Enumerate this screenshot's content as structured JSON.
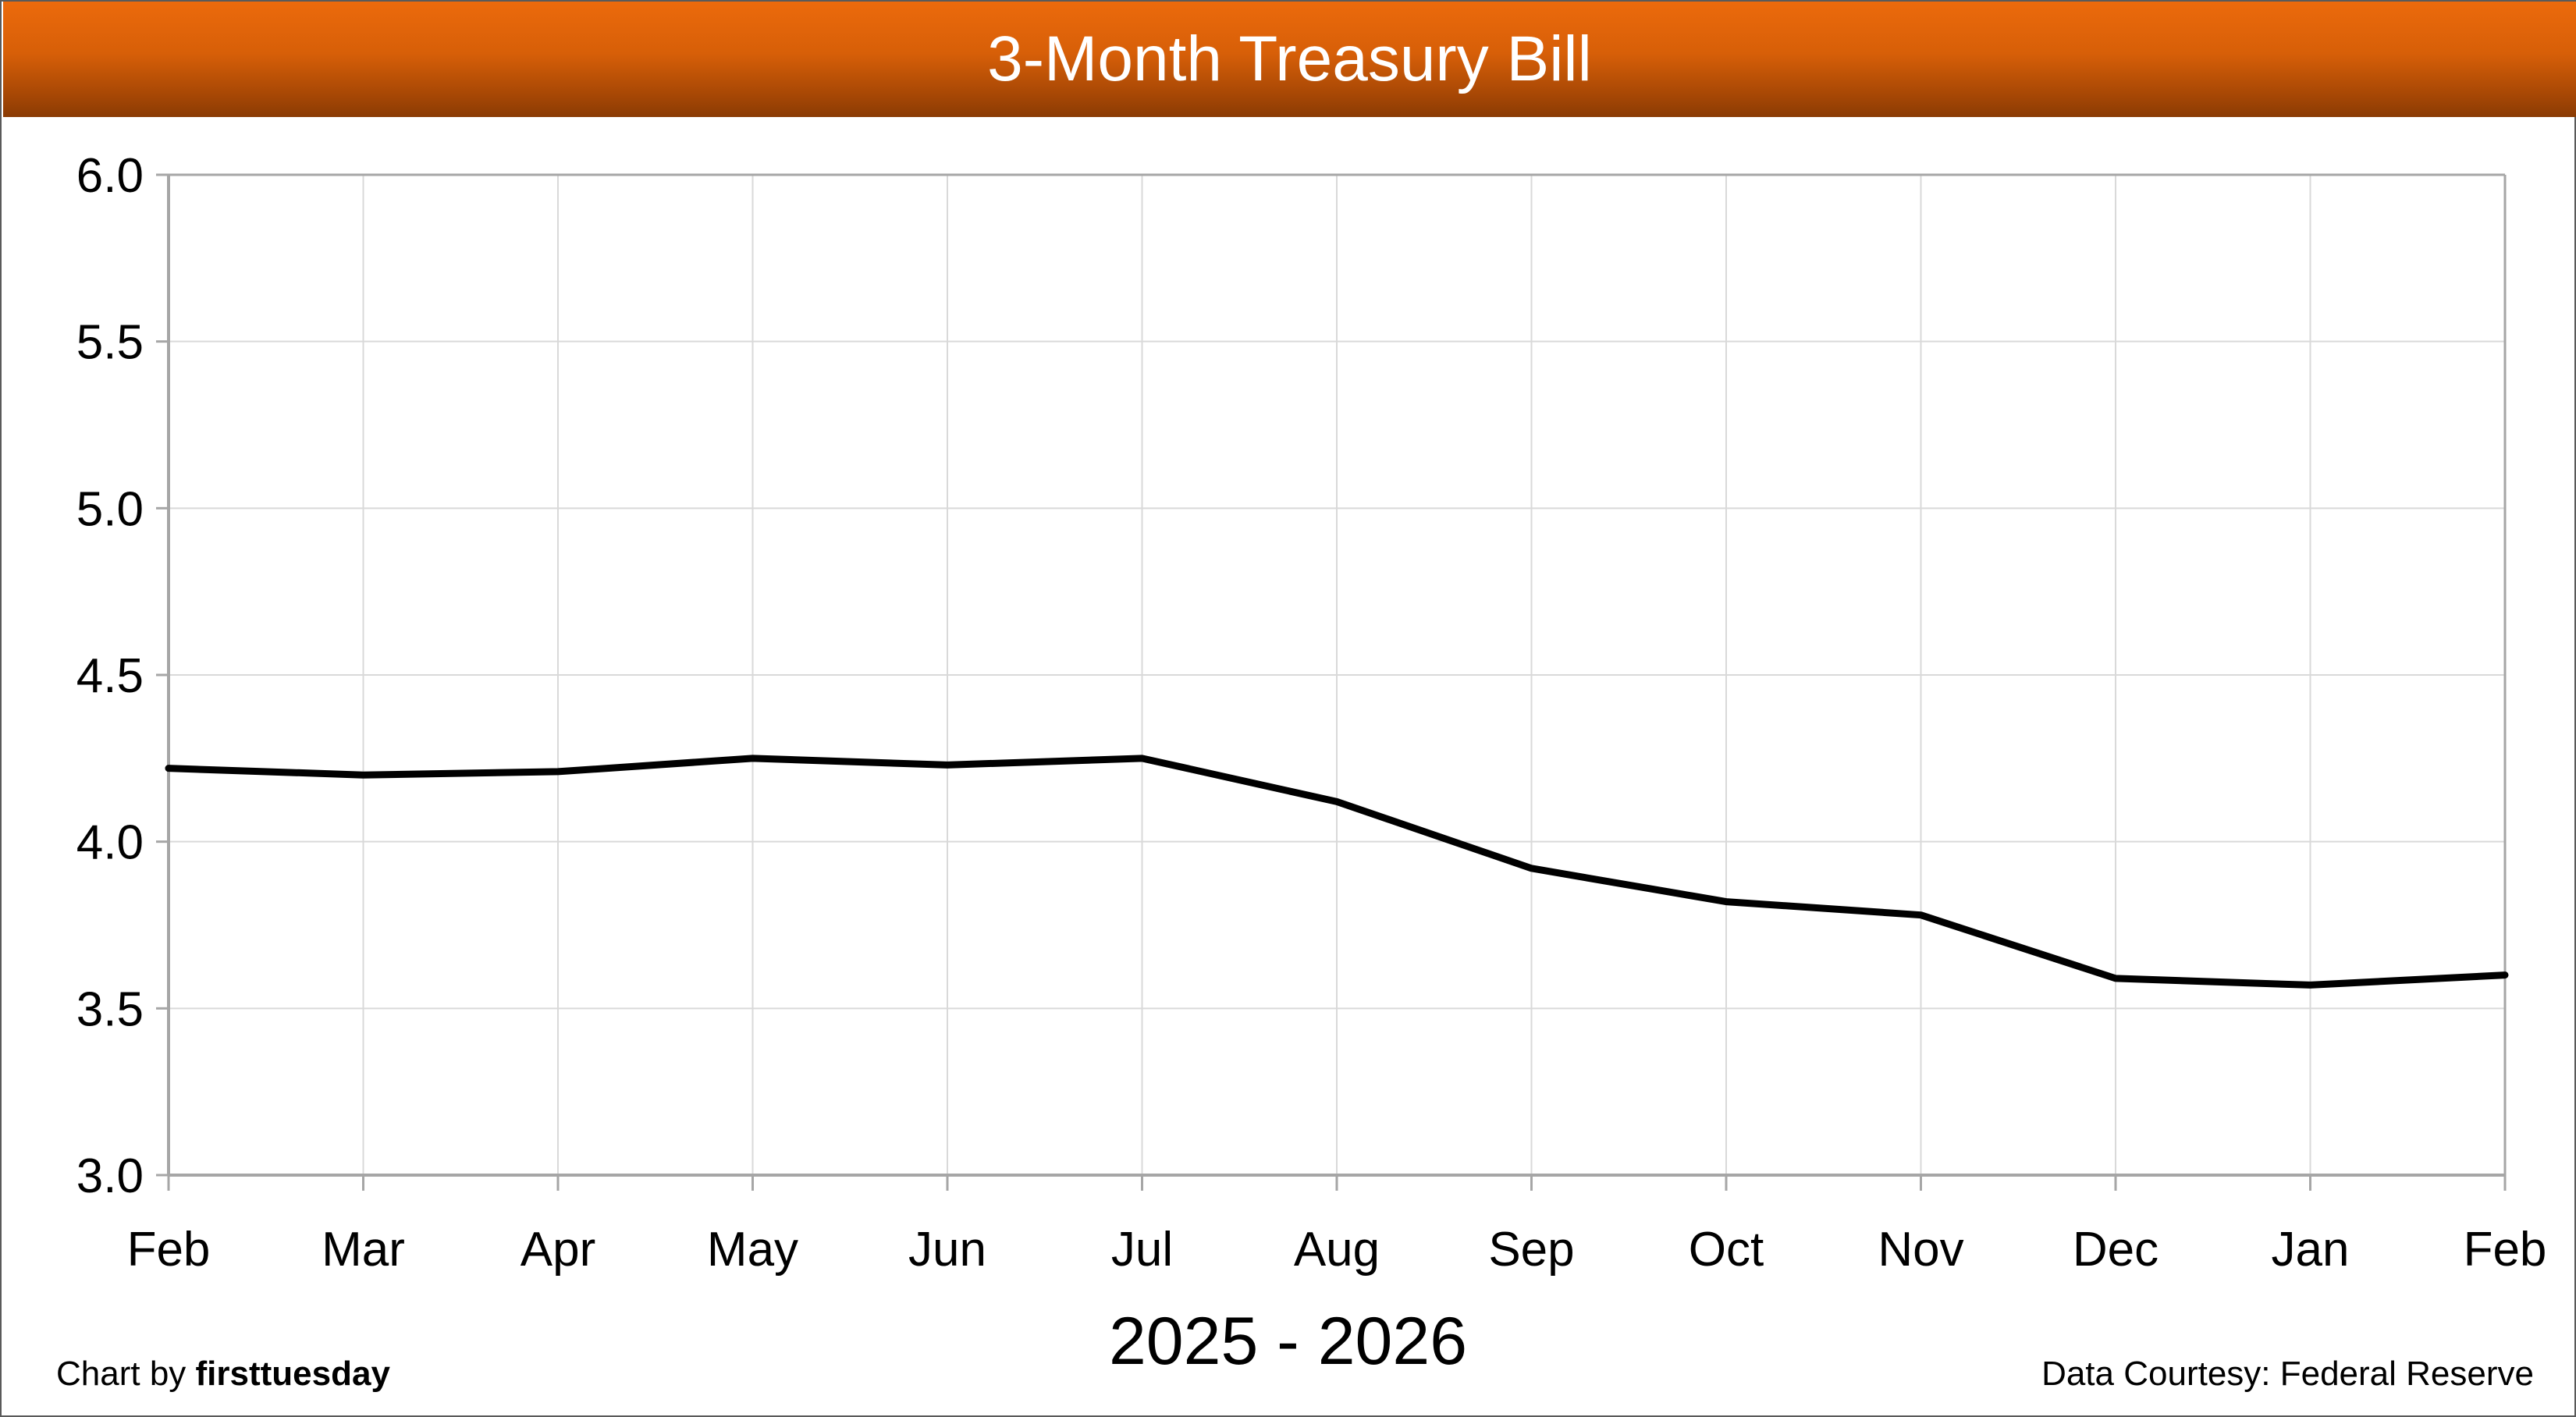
{
  "chart_data": {
    "type": "line",
    "title": "3-Month Treasury Bill",
    "xlabel": "2025 - 2026",
    "ylabel": "",
    "categories": [
      "Feb",
      "Mar",
      "Apr",
      "May",
      "Jun",
      "Jul",
      "Aug",
      "Sep",
      "Oct",
      "Nov",
      "Dec",
      "Jan",
      "Feb"
    ],
    "series": [
      {
        "values": [
          4.22,
          4.2,
          4.21,
          4.25,
          4.23,
          4.25,
          4.12,
          3.92,
          3.82,
          3.78,
          3.59,
          3.57,
          3.6
        ],
        "color": "#000000"
      }
    ],
    "ylim": [
      3.0,
      6.0
    ],
    "yticks": [
      "3.0",
      "3.5",
      "4.0",
      "4.5",
      "5.0",
      "5.5",
      "6.0"
    ],
    "grid": true,
    "legend": "none"
  },
  "credits": {
    "left_prefix": "Chart by ",
    "left_brand": "firsttuesday",
    "right": "Data Courtesy: Federal Reserve"
  },
  "colors": {
    "title_bar": "#e36609",
    "line": "#000000",
    "grid": "#d9d9d9",
    "axis": "#a6a6a6"
  }
}
